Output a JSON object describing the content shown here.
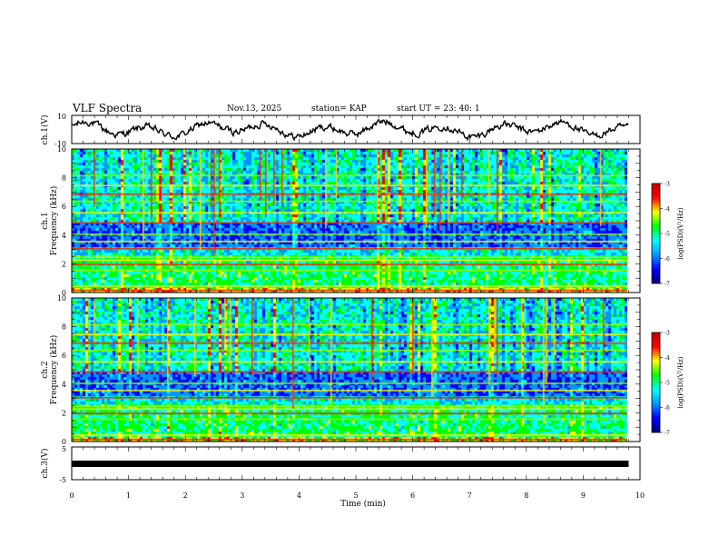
{
  "header": {
    "title": "VLF Spectra",
    "date": "Nov.13, 2025",
    "station": "station= KAP",
    "start": "start  UT  =   23: 40: 1"
  },
  "chart_data": [
    {
      "name": "ch1-waveform",
      "type": "line",
      "ylabel": "ch.1(V)",
      "ylim": [
        -10,
        10
      ],
      "yticks": [
        "10",
        "-10"
      ],
      "xlim": [
        0,
        10
      ],
      "x_end": 9.8
    },
    {
      "name": "ch1-spectrogram",
      "type": "heatmap",
      "ylabel_top": "ch.1",
      "ylabel": "Frequency  (kHz)",
      "ylim": [
        0,
        10
      ],
      "yticks": [
        "0",
        "2",
        "4",
        "6",
        "8",
        "10"
      ],
      "xlim": [
        0,
        10
      ],
      "x_end": 9.8,
      "colorbar": {
        "label": "log(PSD)(V²/Hz)",
        "range": [
          -7,
          -3
        ],
        "ticks": [
          "-3",
          "-4",
          "-5",
          "-6",
          "-7"
        ]
      }
    },
    {
      "name": "ch2-spectrogram",
      "type": "heatmap",
      "ylabel_top": "ch.2",
      "ylabel": "Frequency  (kHz)",
      "ylim": [
        0,
        10
      ],
      "yticks": [
        "0",
        "2",
        "4",
        "6",
        "8",
        "10"
      ],
      "xlim": [
        0,
        10
      ],
      "x_end": 9.8,
      "colorbar": {
        "label": "log(PSD)(V²/Hz)",
        "range": [
          -7,
          -3
        ],
        "ticks": [
          "-3",
          "-4",
          "-5",
          "-6",
          "-7"
        ]
      }
    },
    {
      "name": "ch3-waveform",
      "type": "line",
      "ylabel": "ch.3(V)",
      "ylim": [
        -5,
        5
      ],
      "yticks": [
        "5",
        "-5"
      ],
      "xlim": [
        0,
        10
      ],
      "x_end": 9.8,
      "level": 0
    }
  ],
  "xaxis": {
    "label": "Time  (min)",
    "ticks": [
      "0",
      "1",
      "2",
      "3",
      "4",
      "5",
      "6",
      "7",
      "8",
      "9",
      "10"
    ]
  },
  "colors": {
    "trace": "#000000",
    "colormap": [
      "#00007a",
      "#0000ff",
      "#0096ff",
      "#00ffff",
      "#00ff00",
      "#ffff00",
      "#ff0000",
      "#c00000"
    ]
  }
}
